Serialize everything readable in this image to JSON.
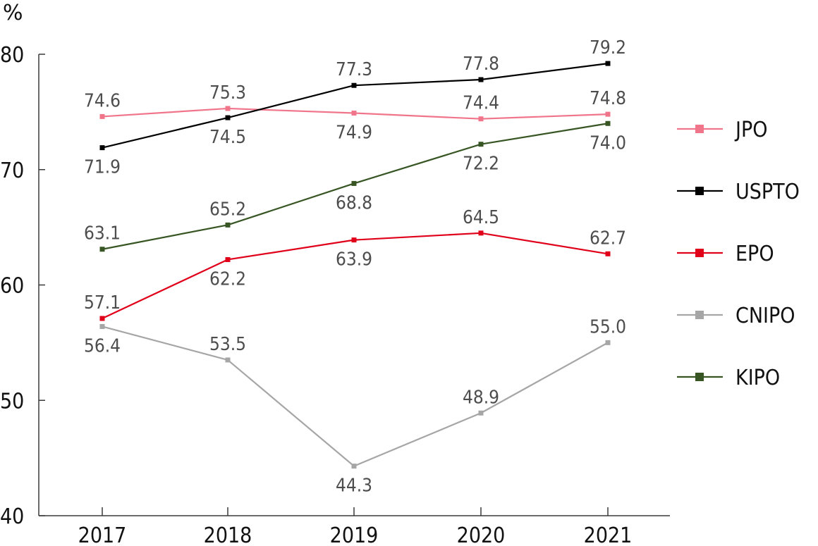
{
  "chart_data": {
    "type": "line",
    "title": "",
    "xlabel": "",
    "ylabel": "%",
    "ylim": [
      40,
      80
    ],
    "y_ticks": [
      "40",
      "50",
      "60",
      "70",
      "80"
    ],
    "grid": false,
    "legend_position": "right",
    "categories": [
      "2017",
      "2018",
      "2019",
      "2020",
      "2021"
    ],
    "series": [
      {
        "name": "JPO",
        "color": "#f0758a",
        "values": [
          74.6,
          75.3,
          74.9,
          74.4,
          74.8
        ],
        "labels": [
          "74.6",
          "75.3",
          "74.9",
          "74.4",
          "74.8"
        ],
        "label_positions": [
          "above",
          "above",
          "below",
          "above",
          "above"
        ]
      },
      {
        "name": "USPTO",
        "color": "#000000",
        "values": [
          71.9,
          74.5,
          77.3,
          77.8,
          79.2
        ],
        "labels": [
          "71.9",
          "74.5",
          "77.3",
          "77.8",
          "79.2"
        ],
        "label_positions": [
          "below",
          "below",
          "above",
          "above",
          "above"
        ]
      },
      {
        "name": "EPO",
        "color": "#e0001a",
        "values": [
          57.1,
          62.2,
          63.9,
          64.5,
          62.7
        ],
        "labels": [
          "57.1",
          "62.2",
          "63.9",
          "64.5",
          "62.7"
        ],
        "label_positions": [
          "above",
          "below",
          "below",
          "above",
          "above"
        ]
      },
      {
        "name": "CNIPO",
        "color": "#a6a6a6",
        "values": [
          56.4,
          53.5,
          44.3,
          48.9,
          55.0
        ],
        "labels": [
          "56.4",
          "53.5",
          "44.3",
          "48.9",
          "55.0"
        ],
        "label_positions": [
          "below",
          "above",
          "below",
          "above",
          "above"
        ]
      },
      {
        "name": "KIPO",
        "color": "#375623",
        "values": [
          63.1,
          65.2,
          68.8,
          72.2,
          74.0
        ],
        "labels": [
          "63.1",
          "65.2",
          "68.8",
          "72.2",
          "74.0"
        ],
        "label_positions": [
          "above",
          "above",
          "below",
          "below",
          "below"
        ]
      }
    ]
  }
}
